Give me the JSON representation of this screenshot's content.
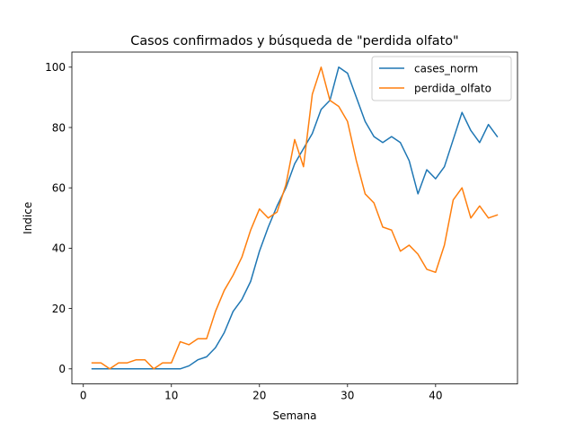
{
  "chart_data": {
    "type": "line",
    "title": "Casos confirmados y búsqueda de \"perdida olfato\"",
    "xlabel": "Semana",
    "ylabel": "Indice",
    "xlim": [
      -1.3,
      49.3
    ],
    "ylim": [
      -5,
      105
    ],
    "xticks": [
      0,
      10,
      20,
      30,
      40
    ],
    "yticks": [
      0,
      20,
      40,
      60,
      80,
      100
    ],
    "grid": false,
    "legend_position": "top-right",
    "x": [
      1,
      2,
      3,
      4,
      5,
      6,
      7,
      8,
      9,
      10,
      11,
      12,
      13,
      14,
      15,
      16,
      17,
      18,
      19,
      20,
      21,
      22,
      23,
      24,
      25,
      26,
      27,
      28,
      29,
      30,
      31,
      32,
      33,
      34,
      35,
      36,
      37,
      38,
      39,
      40,
      41,
      42,
      43,
      44,
      45,
      46,
      47
    ],
    "series": [
      {
        "name": "cases_norm",
        "color": "#1f77b4",
        "values": [
          0,
          0,
          0,
          0,
          0,
          0,
          0,
          0,
          0,
          0,
          0,
          1,
          3,
          4,
          7,
          12,
          19,
          23,
          29,
          39,
          47,
          54,
          60,
          68,
          73,
          78,
          86,
          89,
          100,
          98,
          90,
          82,
          77,
          75,
          77,
          75,
          69,
          58,
          66,
          63,
          67,
          76,
          85,
          79,
          75,
          81,
          77
        ]
      },
      {
        "name": "perdida_olfato",
        "color": "#ff7f0e",
        "values": [
          2,
          2,
          0,
          2,
          2,
          3,
          3,
          0,
          2,
          2,
          9,
          8,
          10,
          10,
          19,
          26,
          31,
          37,
          46,
          53,
          50,
          52,
          61,
          76,
          67,
          91,
          100,
          89,
          87,
          82,
          69,
          58,
          55,
          47,
          46,
          39,
          41,
          38,
          33,
          32,
          41,
          56,
          60,
          50,
          54,
          50,
          51
        ]
      }
    ]
  }
}
